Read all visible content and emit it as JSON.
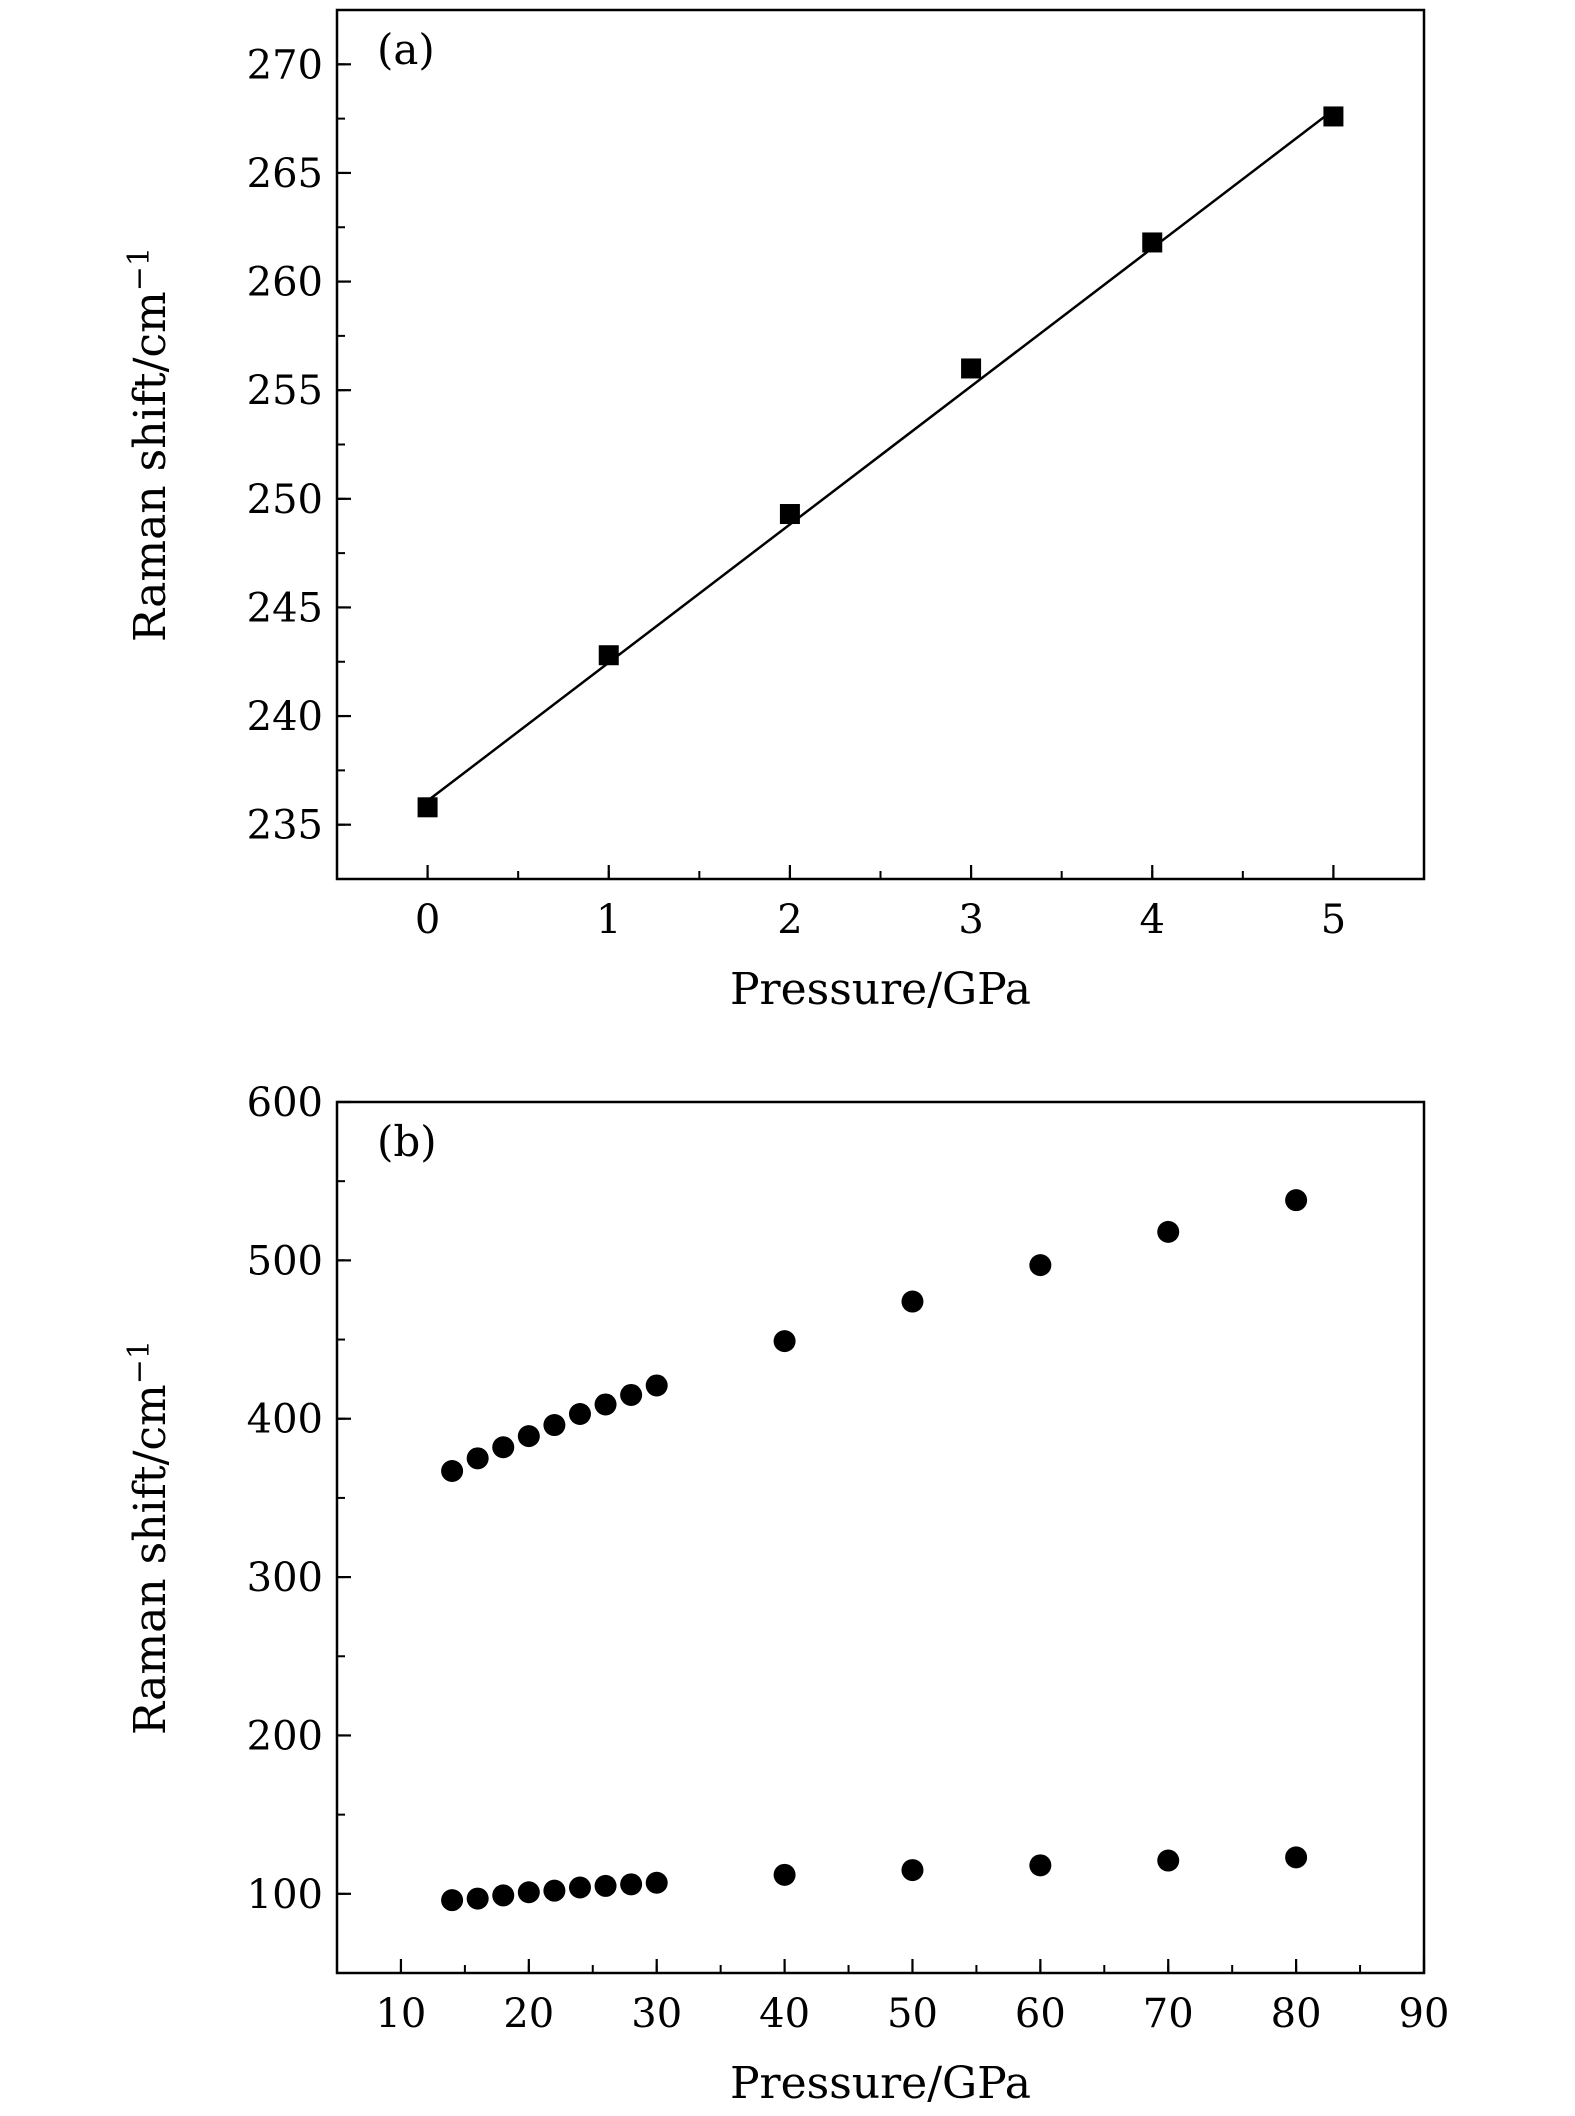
{
  "chart_data": [
    {
      "type": "scatter",
      "panel_label": "(a)",
      "xlabel": "Pressure/GPa",
      "ylabel": "Raman shift/cm",
      "ylabel_superscript": "−1",
      "xlim": [
        -0.5,
        5.5
      ],
      "ylim": [
        232.5,
        272.5
      ],
      "xticks": [
        0,
        1,
        2,
        3,
        4,
        5
      ],
      "yticks": [
        235,
        240,
        245,
        250,
        255,
        260,
        265,
        270
      ],
      "grid": false,
      "marker": "square",
      "series": [
        {
          "x": [
            0,
            1,
            2,
            3,
            4,
            5
          ],
          "y": [
            235.8,
            242.8,
            249.3,
            256.0,
            261.8,
            267.6
          ]
        }
      ],
      "fit_line": {
        "x": [
          0,
          5
        ],
        "y": [
          236.1,
          267.9
        ]
      }
    },
    {
      "type": "scatter",
      "panel_label": "(b)",
      "xlabel": "Pressure/GPa",
      "ylabel": "Raman shift/cm",
      "ylabel_superscript": "−1",
      "xlim": [
        5,
        90
      ],
      "ylim": [
        50,
        600
      ],
      "xticks": [
        10,
        20,
        30,
        40,
        50,
        60,
        70,
        80,
        90
      ],
      "yticks": [
        100,
        200,
        300,
        400,
        500,
        600
      ],
      "grid": false,
      "marker": "circle",
      "series": [
        {
          "x": [
            14,
            16,
            18,
            20,
            22,
            24,
            26,
            28,
            30,
            40,
            50,
            60,
            70,
            80
          ],
          "y": [
            367,
            375,
            382,
            389,
            396,
            403,
            409,
            415,
            421,
            449,
            474,
            497,
            518,
            538
          ]
        },
        {
          "x": [
            14,
            16,
            18,
            20,
            22,
            24,
            26,
            28,
            30,
            40,
            50,
            60,
            70,
            80
          ],
          "y": [
            96,
            97,
            99,
            101,
            102,
            104,
            105,
            106,
            107,
            112,
            115,
            118,
            121,
            123
          ]
        }
      ]
    }
  ]
}
